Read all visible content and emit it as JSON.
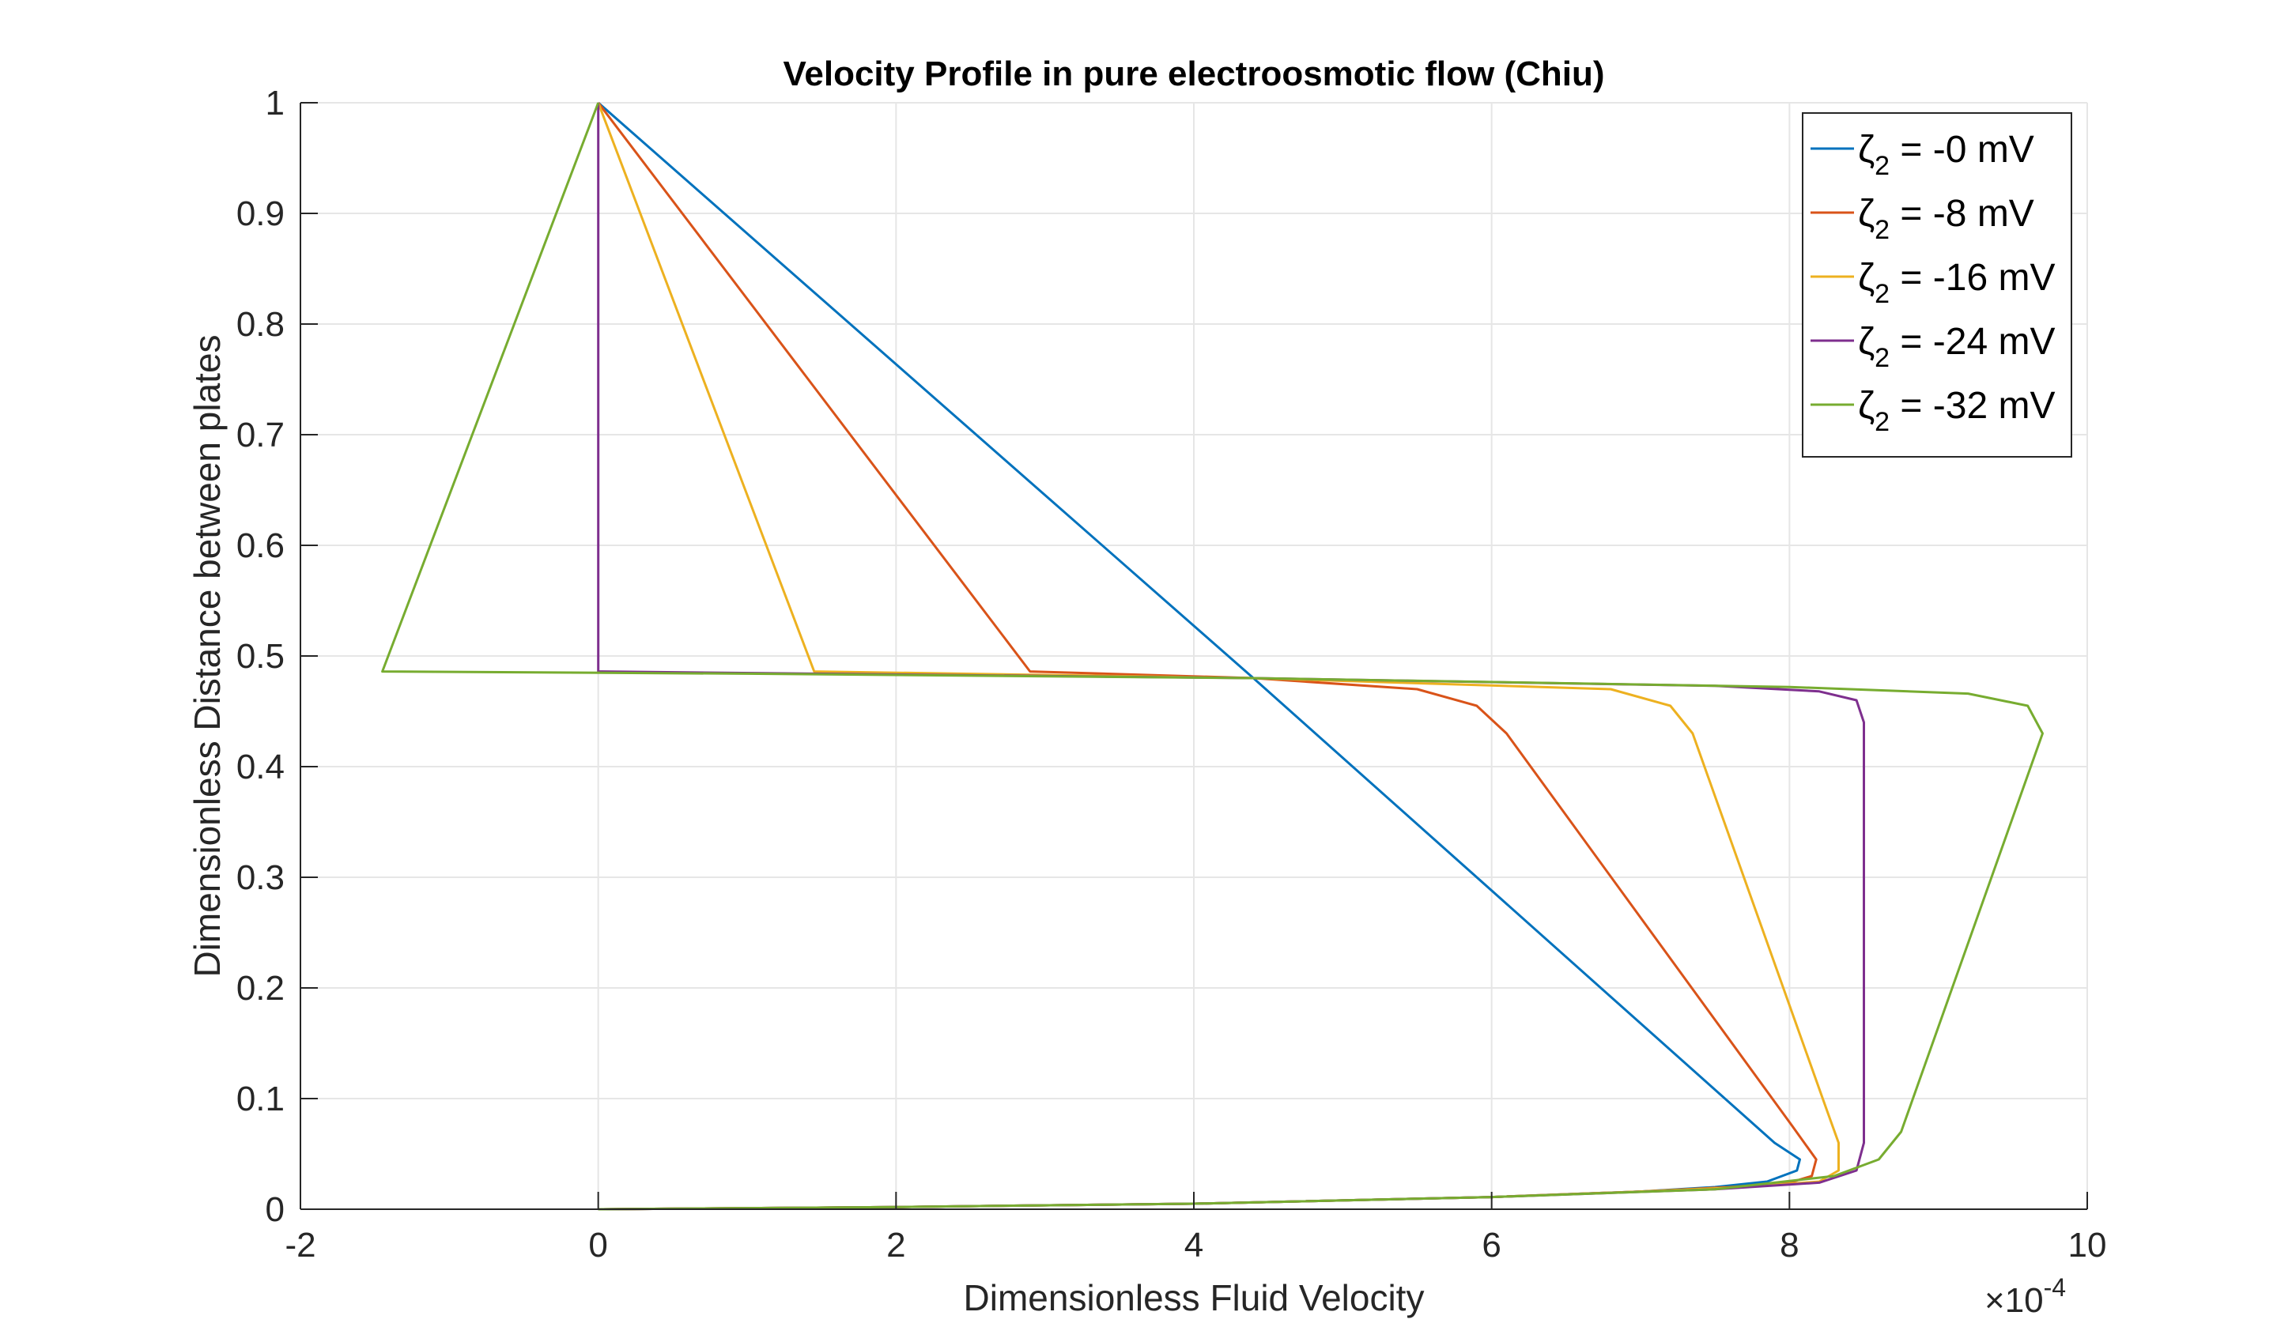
{
  "chart_data": {
    "type": "line",
    "title": "Velocity Profile in pure electroosmotic flow (Chiu)",
    "xlabel": "Dimensionless Fluid Velocity",
    "ylabel": "Dimensionless Distance between plates",
    "x_multiplier": {
      "base": "×10",
      "exponent": "-4"
    },
    "xlim": [
      -2,
      10
    ],
    "ylim": [
      0,
      1
    ],
    "xticks": [
      -2,
      0,
      2,
      4,
      6,
      8,
      10
    ],
    "xtick_labels": [
      "-2",
      "0",
      "2",
      "4",
      "6",
      "8",
      "10"
    ],
    "yticks": [
      0,
      0.1,
      0.2,
      0.3,
      0.4,
      0.5,
      0.6,
      0.7,
      0.8,
      0.9,
      1
    ],
    "ytick_labels": [
      "0",
      "0.1",
      "0.2",
      "0.3",
      "0.4",
      "0.5",
      "0.6",
      "0.7",
      "0.8",
      "0.9",
      "1"
    ],
    "grid": true,
    "legend_position": "top-right",
    "series": [
      {
        "legend_prefix": "ζ",
        "legend_sub": "2",
        "legend_suffix": " = -0 mV",
        "color": "#0072BD",
        "points": [
          [
            0,
            0
          ],
          [
            2,
            0.002
          ],
          [
            4,
            0.005
          ],
          [
            6,
            0.011
          ],
          [
            7,
            0.016
          ],
          [
            7.5,
            0.02
          ],
          [
            7.85,
            0.025
          ],
          [
            8.05,
            0.035
          ],
          [
            8.07,
            0.045
          ],
          [
            7.9,
            0.06
          ],
          [
            4.4,
            0.48
          ],
          [
            0,
            1
          ]
        ]
      },
      {
        "legend_prefix": "ζ",
        "legend_sub": "2",
        "legend_suffix": " = -8 mV",
        "color": "#D95319",
        "points": [
          [
            0,
            0
          ],
          [
            2,
            0.002
          ],
          [
            4,
            0.005
          ],
          [
            6,
            0.011
          ],
          [
            7,
            0.016
          ],
          [
            7.6,
            0.02
          ],
          [
            8,
            0.024
          ],
          [
            8.15,
            0.03
          ],
          [
            8.18,
            0.045
          ],
          [
            8.02,
            0.075
          ],
          [
            6.1,
            0.43
          ],
          [
            5.9,
            0.455
          ],
          [
            5.5,
            0.47
          ],
          [
            4.4,
            0.48
          ],
          [
            2.9,
            0.486
          ],
          [
            0,
            1
          ]
        ]
      },
      {
        "legend_prefix": "ζ",
        "legend_sub": "2",
        "legend_suffix": " = -16 mV",
        "color": "#EDB120",
        "points": [
          [
            0,
            0
          ],
          [
            2,
            0.002
          ],
          [
            4,
            0.005
          ],
          [
            6,
            0.011
          ],
          [
            7,
            0.016
          ],
          [
            7.7,
            0.02
          ],
          [
            8.2,
            0.025
          ],
          [
            8.33,
            0.035
          ],
          [
            8.33,
            0.06
          ],
          [
            8.25,
            0.09
          ],
          [
            7.35,
            0.43
          ],
          [
            7.2,
            0.455
          ],
          [
            6.8,
            0.47
          ],
          [
            4.4,
            0.48
          ],
          [
            1.45,
            0.486
          ],
          [
            0,
            1
          ]
        ]
      },
      {
        "legend_prefix": "ζ",
        "legend_sub": "2",
        "legend_suffix": " = -24 mV",
        "color": "#7E2F8E",
        "points": [
          [
            0,
            0
          ],
          [
            2,
            0.002
          ],
          [
            4,
            0.005
          ],
          [
            6,
            0.011
          ],
          [
            7.5,
            0.018
          ],
          [
            8.2,
            0.024
          ],
          [
            8.45,
            0.035
          ],
          [
            8.5,
            0.06
          ],
          [
            8.5,
            0.44
          ],
          [
            8.45,
            0.46
          ],
          [
            8.2,
            0.468
          ],
          [
            7.5,
            0.473
          ],
          [
            4.4,
            0.48
          ],
          [
            0,
            0.486
          ],
          [
            0,
            1
          ]
        ]
      },
      {
        "legend_prefix": "ζ",
        "legend_sub": "2",
        "legend_suffix": " = -32 mV",
        "color": "#77AC30",
        "points": [
          [
            0,
            0
          ],
          [
            2,
            0.002
          ],
          [
            4,
            0.005
          ],
          [
            6,
            0.011
          ],
          [
            7.5,
            0.018
          ],
          [
            8.3,
            0.03
          ],
          [
            8.6,
            0.045
          ],
          [
            8.75,
            0.07
          ],
          [
            9.7,
            0.43
          ],
          [
            9.6,
            0.455
          ],
          [
            9.2,
            0.466
          ],
          [
            8,
            0.472
          ],
          [
            4.4,
            0.48
          ],
          [
            1,
            0.484
          ],
          [
            -1.45,
            0.486
          ],
          [
            0,
            1
          ]
        ]
      }
    ]
  }
}
